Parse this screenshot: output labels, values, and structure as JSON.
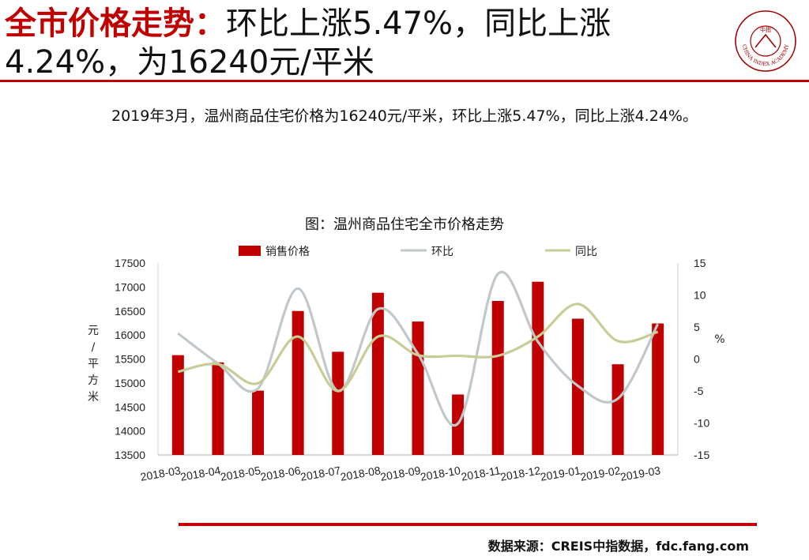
{
  "header": {
    "title_highlight": "全市价格走势：",
    "title_rest": "环比上涨5.47%，同比上涨4.24%，为16240元/平米",
    "logo_text": "CHINA INDEX ACADEMY",
    "logo_center": "中指"
  },
  "summary": "2019年3月，温州商品住宅价格为16240元/平米，环比上涨5.47%，同比上涨4.24%。",
  "footer": {
    "source": "数据来源：CREIS中指数据，fdc.fang.com"
  },
  "colors": {
    "bar": "#c00000",
    "mom": "#c0c8c8",
    "yoy": "#c8cc96",
    "accent": "#c00000"
  },
  "chart_data": {
    "type": "bar",
    "title": "图：温州商品住宅全市价格走势",
    "categories": [
      "2018-03",
      "2018-04",
      "2018-05",
      "2018-06",
      "2018-07",
      "2018-08",
      "2018-09",
      "2018-10",
      "2018-11",
      "2018-12",
      "2019-01",
      "2019-02",
      "2019-03"
    ],
    "series": [
      {
        "name": "销售价格",
        "type": "bar",
        "axis": "left",
        "values": [
          15580,
          15430,
          14840,
          16500,
          15650,
          16880,
          16280,
          14760,
          16710,
          17110,
          16340,
          15390,
          16240
        ]
      },
      {
        "name": "环比",
        "type": "line",
        "axis": "right",
        "values": [
          4,
          -0.7,
          -4.6,
          11,
          -5,
          7.8,
          0.8,
          -10.1,
          13.3,
          2.7,
          -4.2,
          -6.2,
          5.47
        ]
      },
      {
        "name": "同比",
        "type": "line",
        "axis": "right",
        "values": [
          -2,
          -0.8,
          -3.8,
          3.5,
          -5,
          3.5,
          0.6,
          0.5,
          0.5,
          3.5,
          8.6,
          2.8,
          4.24
        ]
      }
    ],
    "ylabel": "元/平方米",
    "y2label": "%",
    "ylim": [
      13500,
      17500
    ],
    "yticks": [
      13500,
      14000,
      14500,
      15000,
      15500,
      16000,
      16500,
      17000,
      17500
    ],
    "y2lim": [
      -15,
      15
    ],
    "y2ticks": [
      -15,
      -10,
      -5,
      0,
      5,
      10,
      15
    ],
    "legend": "top",
    "grid": false
  }
}
